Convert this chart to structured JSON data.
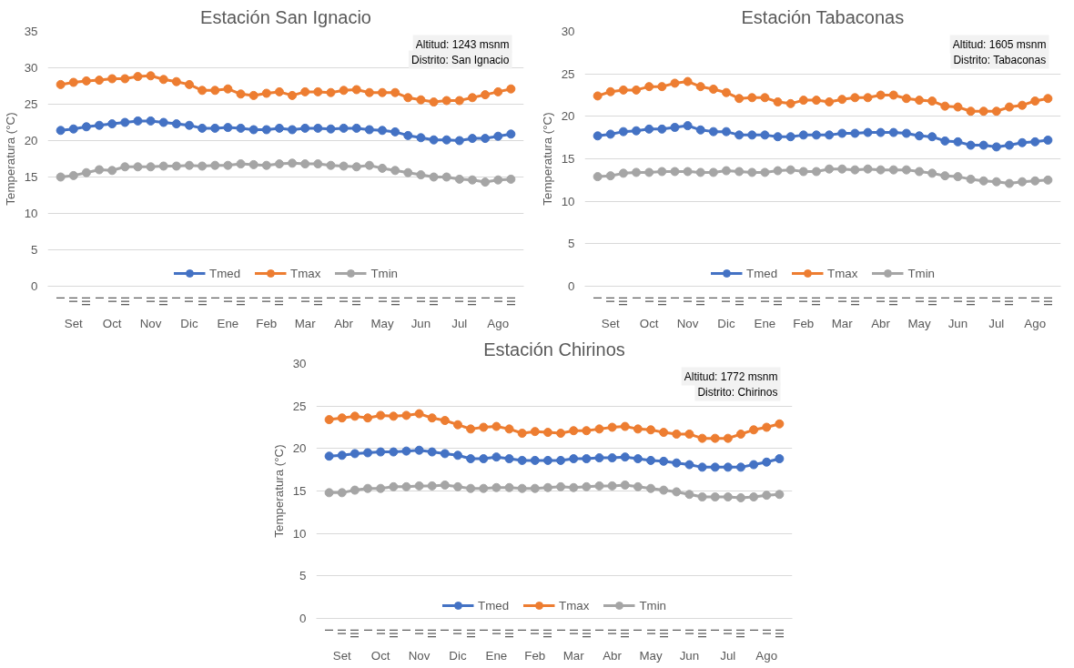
{
  "chart_data": [
    {
      "type": "line",
      "title": "Estación San Ignacio",
      "ylabel": "Temperatura (°C)",
      "annotations": [
        "Altitud: 1243 msnm",
        "Distrito: San Ignacio",
        "Set",
        "Oct",
        "Nov",
        "Dic",
        "Ene",
        "Feb",
        "Mar",
        "Abr",
        "May",
        "Jun",
        "Jul",
        "Ago"
      ],
      "categories": [
        "I",
        "II",
        "III",
        "I",
        "II",
        "III",
        "I",
        "II",
        "III",
        "I",
        "II",
        "III",
        "I",
        "II",
        "III",
        "I",
        "II",
        "III",
        "I",
        "II",
        "III",
        "I",
        "II",
        "III",
        "I",
        "II",
        "III",
        "I",
        "II",
        "III",
        "I",
        "II",
        "III",
        "I",
        "II",
        "III"
      ],
      "ylim": [
        0,
        35
      ],
      "yticks": [
        0,
        5,
        10,
        15,
        20,
        25,
        30,
        35
      ],
      "grid": "y",
      "legend": "bottom",
      "marker": "circle",
      "line_style": "solid",
      "series": [
        {
          "name": "Tmed",
          "color": "#4472c4",
          "values": [
            21.4,
            21.6,
            21.9,
            22.1,
            22.3,
            22.5,
            22.7,
            22.7,
            22.5,
            22.3,
            22.1,
            21.7,
            21.7,
            21.8,
            21.7,
            21.5,
            21.5,
            21.7,
            21.5,
            21.7,
            21.7,
            21.6,
            21.7,
            21.7,
            21.5,
            21.4,
            21.2,
            20.7,
            20.4,
            20.1,
            20.1,
            20.0,
            20.3,
            20.3,
            20.6,
            20.9
          ]
        },
        {
          "name": "Tmax",
          "color": "#ed7d31",
          "values": [
            27.7,
            28.0,
            28.2,
            28.3,
            28.5,
            28.5,
            28.8,
            28.9,
            28.4,
            28.1,
            27.7,
            26.9,
            26.9,
            27.1,
            26.4,
            26.2,
            26.5,
            26.7,
            26.2,
            26.7,
            26.7,
            26.6,
            26.9,
            27.0,
            26.6,
            26.6,
            26.6,
            25.9,
            25.6,
            25.3,
            25.5,
            25.5,
            25.9,
            26.3,
            26.7,
            27.1
          ]
        },
        {
          "name": "Tmin",
          "color": "#a5a5a5",
          "values": [
            15.0,
            15.2,
            15.6,
            16.0,
            15.9,
            16.4,
            16.4,
            16.4,
            16.5,
            16.5,
            16.6,
            16.5,
            16.6,
            16.6,
            16.8,
            16.7,
            16.6,
            16.8,
            16.9,
            16.8,
            16.8,
            16.6,
            16.5,
            16.4,
            16.6,
            16.2,
            15.9,
            15.6,
            15.3,
            15.0,
            15.0,
            14.7,
            14.6,
            14.3,
            14.6,
            14.7
          ]
        }
      ]
    },
    {
      "type": "line",
      "title": "Estación Tabaconas",
      "ylabel": "Temperatura (°C)",
      "annotations": [
        "Altitud: 1605 msnm",
        "Distrito: Tabaconas",
        "Set",
        "Oct",
        "Nov",
        "Dic",
        "Ene",
        "Feb",
        "Mar",
        "Abr",
        "May",
        "Jun",
        "Jul",
        "Ago"
      ],
      "categories": [
        "I",
        "II",
        "III",
        "I",
        "II",
        "III",
        "I",
        "II",
        "III",
        "I",
        "II",
        "III",
        "I",
        "II",
        "III",
        "I",
        "II",
        "III",
        "I",
        "II",
        "III",
        "I",
        "II",
        "III",
        "I",
        "II",
        "III",
        "I",
        "II",
        "III",
        "I",
        "II",
        "III",
        "I",
        "II",
        "III"
      ],
      "ylim": [
        0,
        30
      ],
      "yticks": [
        0,
        5,
        10,
        15,
        20,
        25,
        30
      ],
      "grid": "y",
      "legend": "bottom",
      "marker": "circle",
      "line_style": "solid",
      "series": [
        {
          "name": "Tmed",
          "color": "#4472c4",
          "values": [
            17.7,
            17.9,
            18.2,
            18.3,
            18.5,
            18.5,
            18.7,
            18.9,
            18.4,
            18.2,
            18.2,
            17.8,
            17.8,
            17.8,
            17.6,
            17.6,
            17.8,
            17.8,
            17.8,
            18.0,
            18.0,
            18.1,
            18.1,
            18.1,
            18.0,
            17.7,
            17.6,
            17.1,
            17.0,
            16.6,
            16.6,
            16.4,
            16.6,
            16.9,
            17.0,
            17.2
          ]
        },
        {
          "name": "Tmax",
          "color": "#ed7d31",
          "values": [
            22.4,
            22.9,
            23.1,
            23.1,
            23.5,
            23.5,
            23.9,
            24.1,
            23.5,
            23.2,
            22.8,
            22.1,
            22.2,
            22.2,
            21.7,
            21.5,
            21.9,
            21.9,
            21.7,
            22.0,
            22.2,
            22.2,
            22.5,
            22.5,
            22.1,
            21.9,
            21.8,
            21.2,
            21.1,
            20.6,
            20.6,
            20.6,
            21.1,
            21.3,
            21.8,
            22.1
          ]
        },
        {
          "name": "Tmin",
          "color": "#a5a5a5",
          "values": [
            12.9,
            13.0,
            13.3,
            13.4,
            13.4,
            13.5,
            13.5,
            13.5,
            13.4,
            13.4,
            13.6,
            13.5,
            13.4,
            13.4,
            13.6,
            13.7,
            13.5,
            13.5,
            13.8,
            13.8,
            13.7,
            13.8,
            13.7,
            13.7,
            13.7,
            13.5,
            13.3,
            13.0,
            12.9,
            12.6,
            12.4,
            12.3,
            12.1,
            12.3,
            12.4,
            12.5
          ]
        }
      ]
    },
    {
      "type": "line",
      "title": "Estación Chirinos",
      "ylabel": "Temperatura (°C)",
      "annotations": [
        "Altitud: 1772 msnm",
        "Distrito: Chirinos",
        "Set",
        "Oct",
        "Nov",
        "Dic",
        "Ene",
        "Feb",
        "Mar",
        "Abr",
        "May",
        "Jun",
        "Jul",
        "Ago"
      ],
      "categories": [
        "I",
        "II",
        "III",
        "I",
        "II",
        "III",
        "I",
        "II",
        "III",
        "I",
        "II",
        "III",
        "I",
        "II",
        "III",
        "I",
        "II",
        "III",
        "I",
        "II",
        "III",
        "I",
        "II",
        "III",
        "I",
        "II",
        "III",
        "I",
        "II",
        "III",
        "I",
        "II",
        "III",
        "I",
        "II",
        "III"
      ],
      "ylim": [
        0,
        30
      ],
      "yticks": [
        0,
        5,
        10,
        15,
        20,
        25,
        30
      ],
      "grid": "y",
      "legend": "bottom",
      "marker": "circle",
      "line_style": "solid",
      "series": [
        {
          "name": "Tmed",
          "color": "#4472c4",
          "values": [
            19.1,
            19.2,
            19.4,
            19.5,
            19.6,
            19.6,
            19.7,
            19.8,
            19.6,
            19.4,
            19.2,
            18.8,
            18.8,
            19.0,
            18.8,
            18.6,
            18.6,
            18.6,
            18.6,
            18.8,
            18.8,
            18.9,
            18.9,
            19.0,
            18.8,
            18.6,
            18.5,
            18.3,
            18.1,
            17.8,
            17.8,
            17.8,
            17.8,
            18.1,
            18.4,
            18.8
          ]
        },
        {
          "name": "Tmax",
          "color": "#ed7d31",
          "values": [
            23.4,
            23.6,
            23.8,
            23.6,
            23.9,
            23.8,
            23.9,
            24.1,
            23.6,
            23.3,
            22.8,
            22.3,
            22.5,
            22.6,
            22.3,
            21.8,
            22.0,
            21.9,
            21.8,
            22.1,
            22.1,
            22.3,
            22.5,
            22.6,
            22.3,
            22.2,
            21.9,
            21.7,
            21.7,
            21.2,
            21.2,
            21.2,
            21.7,
            22.2,
            22.5,
            22.9
          ]
        },
        {
          "name": "Tmin",
          "color": "#a5a5a5",
          "values": [
            14.8,
            14.8,
            15.1,
            15.3,
            15.3,
            15.5,
            15.5,
            15.6,
            15.6,
            15.7,
            15.5,
            15.3,
            15.3,
            15.4,
            15.4,
            15.3,
            15.3,
            15.4,
            15.5,
            15.4,
            15.5,
            15.6,
            15.6,
            15.7,
            15.5,
            15.3,
            15.1,
            14.9,
            14.6,
            14.3,
            14.3,
            14.3,
            14.2,
            14.3,
            14.5,
            14.6
          ]
        }
      ]
    }
  ]
}
